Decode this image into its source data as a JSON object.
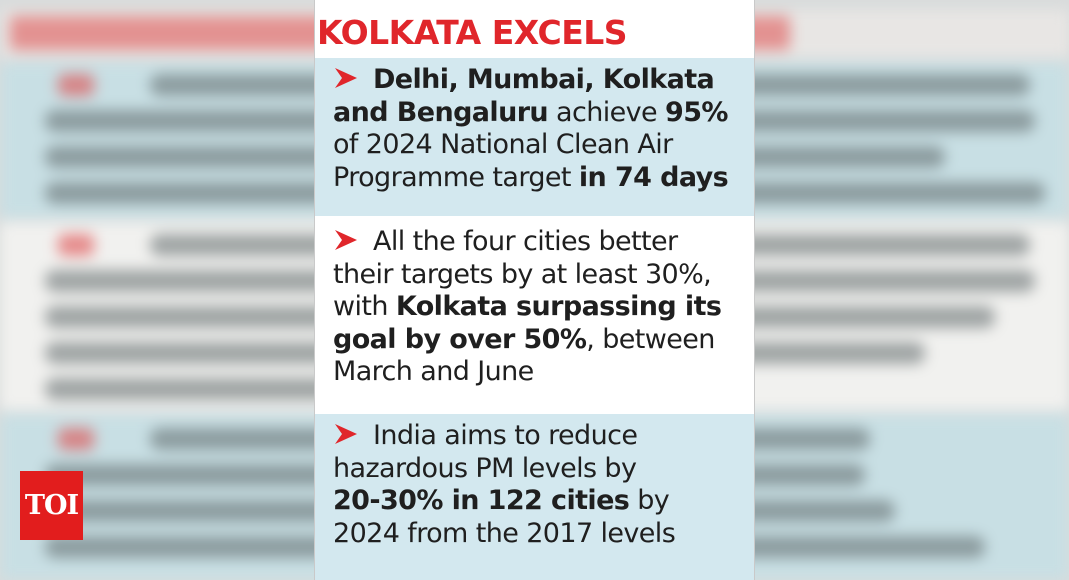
{
  "title": "KOLKATA EXCELS",
  "logo_text": "TOI",
  "colors": {
    "title_red": "#e0262b",
    "arrow_red": "#e0262b",
    "band_blue": "#d3e8ef",
    "logo_red": "#e21d1d"
  },
  "icons": {
    "bullet": "bullet-arrow-icon"
  },
  "items": [
    {
      "lines": [
        [
          {
            "t": "Delhi, Mumbai, Kolkata",
            "b": true
          }
        ],
        [
          {
            "t": "and Bengaluru",
            "b": true
          },
          {
            "t": " achieve ",
            "b": false
          },
          {
            "t": "95%",
            "b": true
          }
        ],
        [
          {
            "t": "of 2024 National Clean Air",
            "b": false
          }
        ],
        [
          {
            "t": "Programme target ",
            "b": false
          },
          {
            "t": "in 74 days",
            "b": true
          }
        ]
      ]
    },
    {
      "lines": [
        [
          {
            "t": "All the four cities better",
            "b": false
          }
        ],
        [
          {
            "t": "their targets by at least 30%,",
            "b": false
          }
        ],
        [
          {
            "t": "with ",
            "b": false
          },
          {
            "t": "Kolkata surpassing its",
            "b": true
          }
        ],
        [
          {
            "t": "goal by over 50%",
            "b": true
          },
          {
            "t": ", between",
            "b": false
          }
        ],
        [
          {
            "t": "March and June",
            "b": false
          }
        ]
      ]
    },
    {
      "lines": [
        [
          {
            "t": "India aims to reduce",
            "b": false
          }
        ],
        [
          {
            "t": "hazardous PM levels by",
            "b": false
          }
        ],
        [
          {
            "t": "20-30% in 122 cities",
            "b": true
          },
          {
            "t": " by",
            "b": false
          }
        ],
        [
          {
            "t": "2024 from the 2017 levels",
            "b": false
          }
        ]
      ]
    }
  ]
}
